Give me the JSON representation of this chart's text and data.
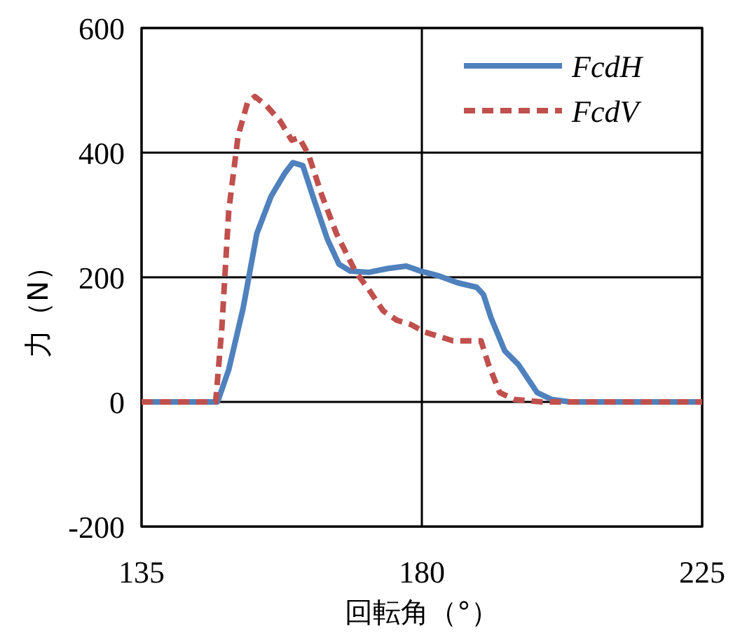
{
  "chart_data": {
    "type": "line",
    "xlabel": "回転角（°）",
    "ylabel": "力（N）",
    "xlim": [
      135,
      225
    ],
    "ylim": [
      -200,
      600
    ],
    "xticks": [
      135,
      180,
      225
    ],
    "yticks": [
      -200,
      0,
      200,
      400,
      600
    ],
    "grid": true,
    "legend": "top right",
    "marker": "none",
    "series": [
      {
        "name": "FcdH",
        "color": "#4f81bd",
        "line_style": "solid",
        "x": [
          135,
          147.2,
          149.0,
          151.3,
          153.5,
          155.8,
          158.0,
          159.3,
          160.9,
          162.5,
          164.8,
          166.7,
          168.5,
          171.5,
          174.5,
          177.5,
          179.8,
          182.8,
          185.8,
          188.8,
          189.9,
          191.1,
          193.3,
          195.5,
          198.5,
          200.8,
          203.8,
          225
        ],
        "values": [
          0,
          0,
          52,
          150,
          270,
          330,
          367,
          384,
          379,
          330,
          262,
          221,
          210,
          208,
          214,
          218,
          210,
          202,
          191,
          184,
          172,
          135,
          82,
          60,
          15,
          4,
          0,
          0
        ]
      },
      {
        "name": "FcdV",
        "color": "#c0504d",
        "line_style": "dashed",
        "x": [
          135,
          146.9,
          147.9,
          149.0,
          150.5,
          152.0,
          153.2,
          155.0,
          157.3,
          159.1,
          160.3,
          161.8,
          164.0,
          166.3,
          169.3,
          171.5,
          173.8,
          176.0,
          178.3,
          180.5,
          182.8,
          185.0,
          187.3,
          189.5,
          190.7,
          192.5,
          194.8,
          199.3,
          225
        ],
        "values": [
          0,
          0,
          120,
          307,
          427,
          480,
          490,
          476,
          450,
          420,
          424,
          397,
          330,
          270,
          210,
          180,
          146,
          131,
          124,
          112,
          105,
          98,
          98,
          98,
          60,
          15,
          4,
          0,
          0
        ]
      }
    ]
  }
}
